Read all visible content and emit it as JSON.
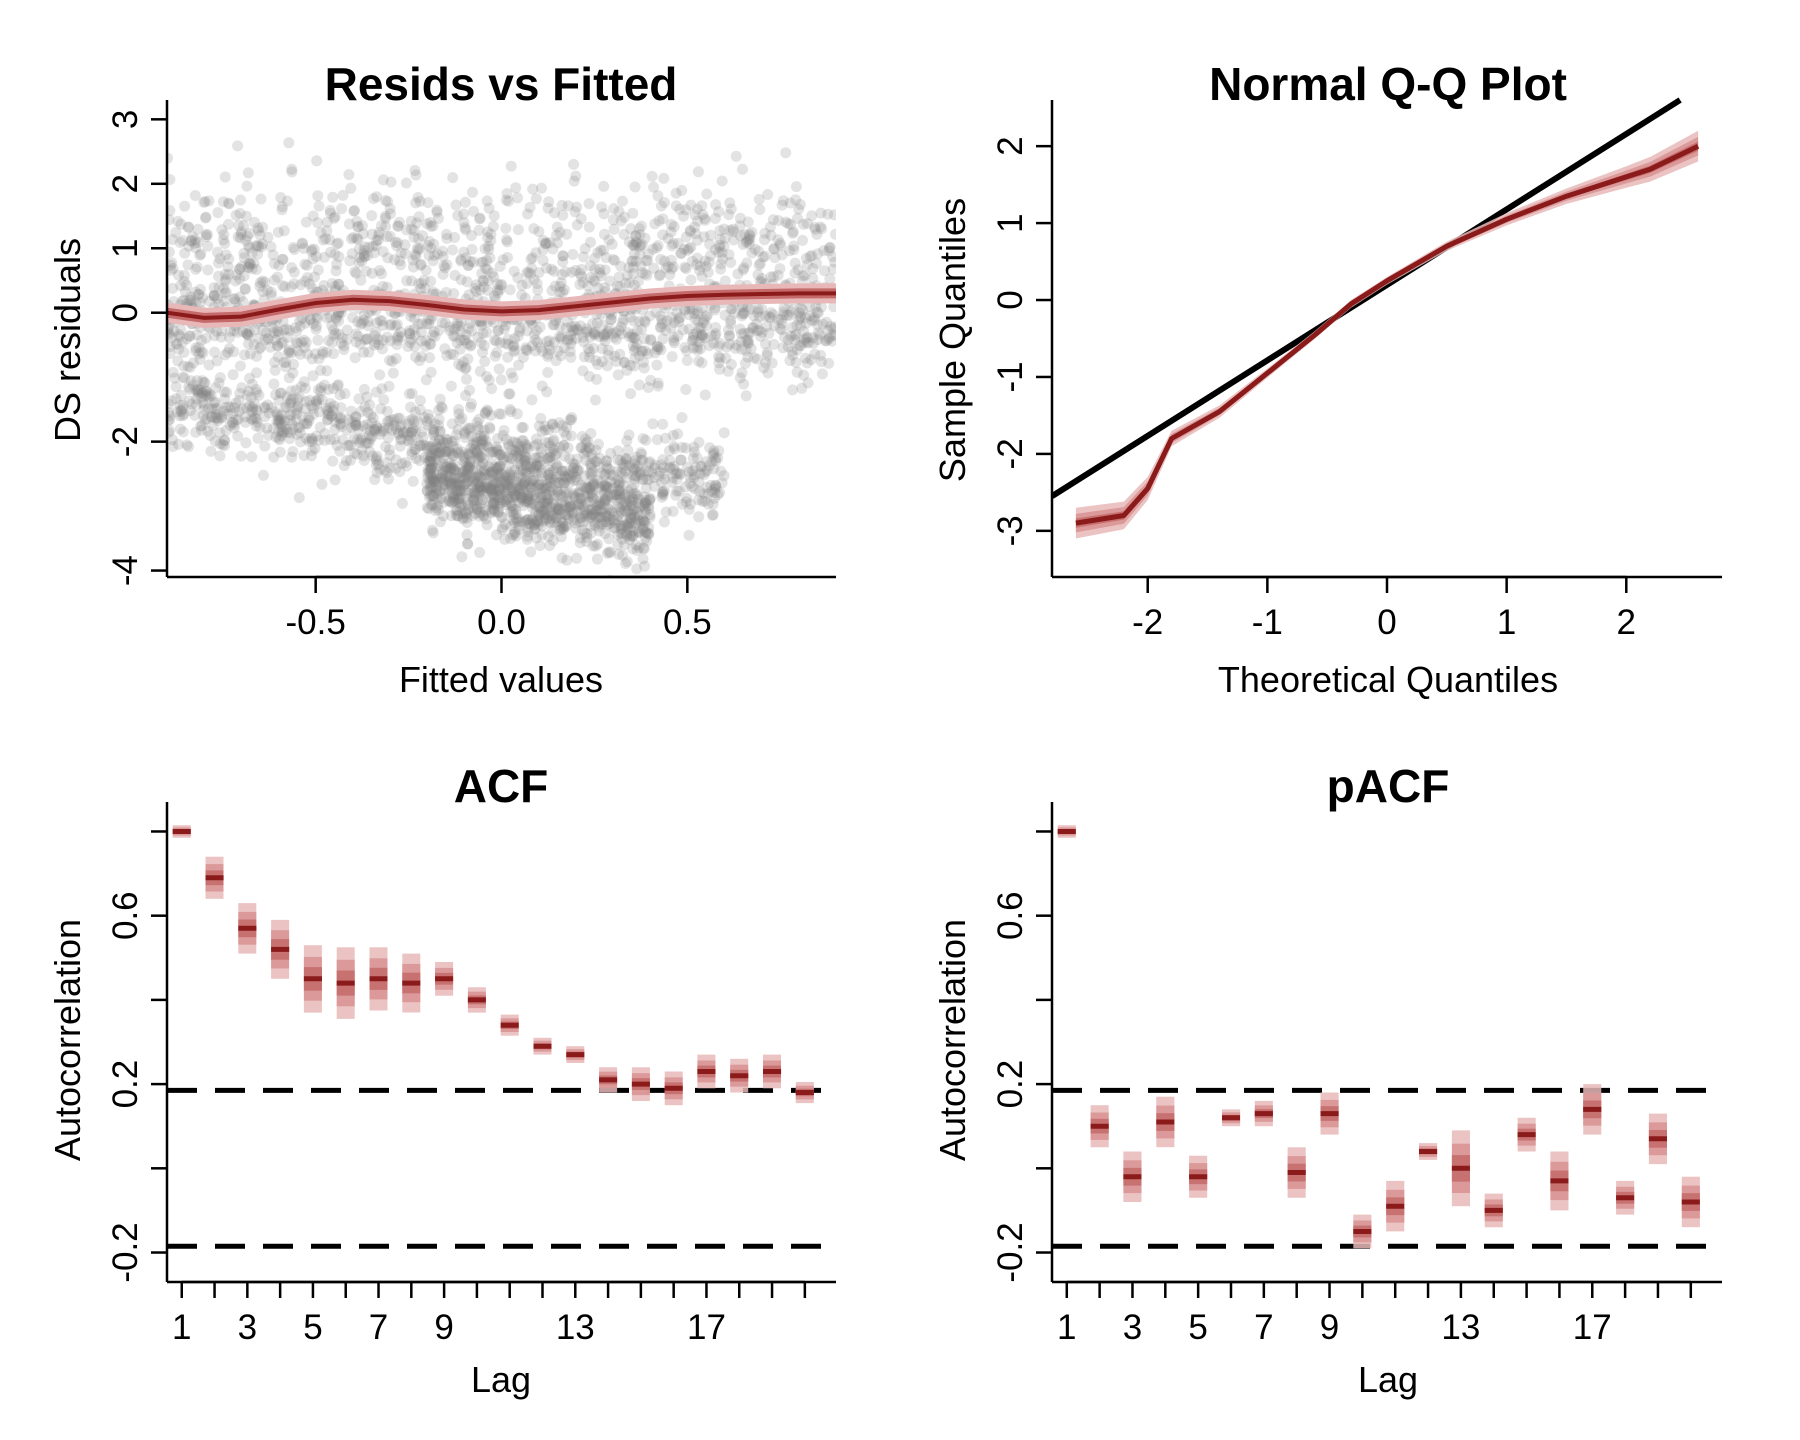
{
  "colors": {
    "accent": "#8b1a1a",
    "band_outer": "#e8b8b8",
    "band_mid": "#d89292",
    "band_inner": "#c46a6a",
    "points": "#808080",
    "reference": "#000000"
  },
  "chart_data": [
    {
      "type": "scatter",
      "title": "Resids vs Fitted",
      "xlabel": "Fitted values",
      "ylabel": "DS residuals",
      "xlim": [
        -0.9,
        0.9
      ],
      "ylim": [
        -4.1,
        3.3
      ],
      "x_ticks": [
        -0.5,
        0.0,
        0.5
      ],
      "x_tick_labels": [
        "-0.5",
        "0.0",
        "0.5"
      ],
      "y_ticks": [
        -4,
        -2,
        0,
        1,
        2,
        3
      ],
      "y_tick_labels": [
        "-4",
        "-2",
        "0",
        "1",
        "2",
        "3"
      ],
      "point_color": "#808080",
      "point_clouds": [
        {
          "x": [
            -0.9,
            0.9
          ],
          "y": [
            0.9,
            0.9
          ],
          "spread": 0.55
        },
        {
          "x": [
            -0.9,
            0.9
          ],
          "y": [
            -0.2,
            -0.4
          ],
          "spread": 0.35
        },
        {
          "x": [
            -0.9,
            0.6
          ],
          "y": [
            -1.4,
            -2.6
          ],
          "spread": 0.35
        },
        {
          "x": [
            -0.2,
            0.4
          ],
          "y": [
            -2.6,
            -3.2
          ],
          "spread": 0.35
        }
      ],
      "smooth": {
        "name": "",
        "x": [
          -0.9,
          -0.8,
          -0.7,
          -0.6,
          -0.5,
          -0.4,
          -0.3,
          -0.2,
          -0.1,
          0.0,
          0.1,
          0.2,
          0.3,
          0.4,
          0.5,
          0.6,
          0.7,
          0.8,
          0.9
        ],
        "y": [
          0.0,
          -0.08,
          -0.06,
          0.05,
          0.15,
          0.2,
          0.18,
          0.12,
          0.05,
          0.02,
          0.04,
          0.1,
          0.16,
          0.22,
          0.26,
          0.28,
          0.29,
          0.3,
          0.3
        ]
      }
    },
    {
      "type": "line",
      "title": "Normal Q-Q Plot",
      "xlabel": "Theoretical Quantiles",
      "ylabel": "Sample Quantiles",
      "xlim": [
        -2.8,
        2.8
      ],
      "ylim": [
        -3.6,
        2.6
      ],
      "x_ticks": [
        -2,
        -1,
        0,
        1,
        2
      ],
      "x_tick_labels": [
        "-2",
        "-1",
        "0",
        "1",
        "2"
      ],
      "y_ticks": [
        -3,
        -2,
        -1,
        0,
        1,
        2
      ],
      "y_tick_labels": [
        "-3",
        "-2",
        "-1",
        "0",
        "1",
        "2"
      ],
      "reference_line": {
        "x": [
          -2.8,
          2.45
        ],
        "y": [
          -2.55,
          2.6
        ]
      },
      "series": [
        {
          "name": "",
          "x": [
            -2.6,
            -2.2,
            -2.0,
            -1.8,
            -1.4,
            -1.0,
            -0.6,
            -0.3,
            0.0,
            0.5,
            1.0,
            1.5,
            2.0,
            2.2,
            2.6
          ],
          "y": [
            -2.9,
            -2.8,
            -2.45,
            -1.8,
            -1.45,
            -0.95,
            -0.45,
            -0.05,
            0.25,
            0.7,
            1.05,
            1.35,
            1.6,
            1.7,
            2.0
          ],
          "band": [
            0.2,
            0.18,
            0.15,
            0.1,
            0.08,
            0.06,
            0.05,
            0.05,
            0.05,
            0.06,
            0.08,
            0.1,
            0.14,
            0.16,
            0.2
          ]
        }
      ]
    },
    {
      "type": "bar",
      "title": "ACF",
      "xlabel": "Lag",
      "ylabel": "Autocorrelation",
      "xlim": [
        0.55,
        20.95
      ],
      "ylim": [
        -0.27,
        0.87
      ],
      "x_ticks": [
        1,
        2,
        3,
        4,
        5,
        6,
        7,
        8,
        9,
        10,
        11,
        12,
        13,
        14,
        15,
        16,
        17,
        18,
        19,
        20
      ],
      "x_tick_labels": [
        "1",
        "",
        "3",
        "",
        "5",
        "",
        "7",
        "",
        "9",
        "",
        "",
        "",
        "13",
        "",
        "",
        "",
        "17",
        "",
        "",
        ""
      ],
      "y_ticks": [
        -0.2,
        0.0,
        0.2,
        0.4,
        0.6,
        0.8
      ],
      "y_tick_labels": [
        "-0.2",
        "",
        "0.2",
        "",
        "0.6",
        ""
      ],
      "confidence_bounds": [
        -0.185,
        0.185
      ],
      "lags": [
        1,
        2,
        3,
        4,
        5,
        6,
        7,
        8,
        9,
        10,
        11,
        12,
        13,
        14,
        15,
        16,
        17,
        18,
        19,
        20
      ],
      "values": [
        0.8,
        0.69,
        0.57,
        0.52,
        0.45,
        0.44,
        0.45,
        0.44,
        0.45,
        0.4,
        0.34,
        0.29,
        0.27,
        0.21,
        0.2,
        0.19,
        0.23,
        0.22,
        0.23,
        0.18
      ],
      "spread": [
        0.015,
        0.05,
        0.06,
        0.07,
        0.08,
        0.085,
        0.075,
        0.07,
        0.04,
        0.03,
        0.025,
        0.02,
        0.02,
        0.03,
        0.04,
        0.04,
        0.04,
        0.04,
        0.04,
        0.025
      ]
    },
    {
      "type": "bar",
      "title": "pACF",
      "xlabel": "Lag",
      "ylabel": "Autocorrelation",
      "xlim": [
        0.55,
        20.95
      ],
      "ylim": [
        -0.27,
        0.87
      ],
      "x_ticks": [
        1,
        2,
        3,
        4,
        5,
        6,
        7,
        8,
        9,
        10,
        11,
        12,
        13,
        14,
        15,
        16,
        17,
        18,
        19,
        20
      ],
      "x_tick_labels": [
        "1",
        "",
        "3",
        "",
        "5",
        "",
        "7",
        "",
        "9",
        "",
        "",
        "",
        "13",
        "",
        "",
        "",
        "17",
        "",
        "",
        ""
      ],
      "y_ticks": [
        -0.2,
        0.0,
        0.2,
        0.4,
        0.6,
        0.8
      ],
      "y_tick_labels": [
        "-0.2",
        "",
        "0.2",
        "",
        "0.6",
        ""
      ],
      "confidence_bounds": [
        -0.185,
        0.185
      ],
      "lags": [
        1,
        2,
        3,
        4,
        5,
        6,
        7,
        8,
        9,
        10,
        11,
        12,
        13,
        14,
        15,
        16,
        17,
        18,
        19,
        20
      ],
      "values": [
        0.8,
        0.1,
        -0.02,
        0.11,
        -0.02,
        0.12,
        0.13,
        -0.01,
        0.13,
        -0.15,
        -0.09,
        0.04,
        0.0,
        -0.1,
        0.08,
        -0.03,
        0.14,
        -0.07,
        0.07,
        -0.08
      ],
      "spread": [
        0.015,
        0.05,
        0.06,
        0.06,
        0.05,
        0.02,
        0.03,
        0.06,
        0.05,
        0.04,
        0.06,
        0.02,
        0.09,
        0.04,
        0.04,
        0.07,
        0.06,
        0.04,
        0.06,
        0.06
      ]
    }
  ]
}
